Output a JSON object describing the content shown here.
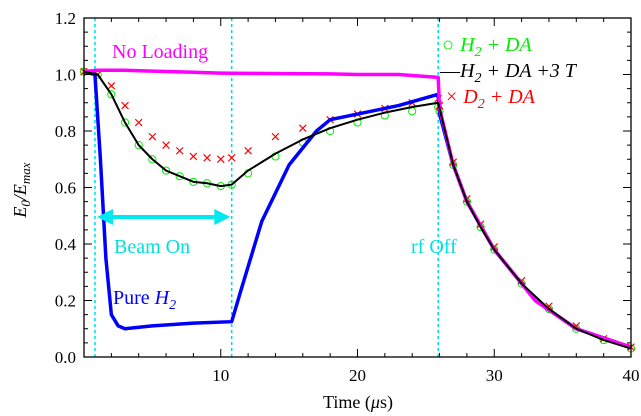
{
  "chart_data": {
    "type": "line",
    "xlabel": "Time (μs)",
    "ylabel": "E0/Emax",
    "xlim": [
      0,
      40
    ],
    "ylim": [
      0,
      1.2
    ],
    "xticks": [
      10,
      20,
      30,
      40
    ],
    "yticks": [
      0.0,
      0.2,
      0.4,
      0.6,
      0.8,
      1.0,
      1.2
    ],
    "ytick_labels": [
      "0.0",
      "0.2",
      "0.4",
      "0.6",
      "0.8",
      "1.0",
      "1.2"
    ],
    "grid": false,
    "legend_position": "top-right",
    "vlines": [
      0.8,
      10.8,
      25.9
    ],
    "series": [
      {
        "id": "no-loading",
        "color": "#ff00ff",
        "marker": "line",
        "x": [
          0,
          1,
          3,
          5,
          8,
          10,
          12,
          15,
          18,
          20,
          23,
          25.9,
          26,
          27,
          28,
          30,
          33,
          36,
          40
        ],
        "y": [
          1.01,
          1.015,
          1.015,
          1.012,
          1.008,
          1.005,
          1.004,
          1.003,
          1.002,
          1.0,
          1.0,
          0.99,
          0.88,
          0.68,
          0.55,
          0.38,
          0.2,
          0.1,
          0.035
        ]
      },
      {
        "id": "pure-h2",
        "color": "#0000ff",
        "marker": "line",
        "x": [
          0,
          0.8,
          1.2,
          1.6,
          2.0,
          2.5,
          3,
          5,
          8,
          10.8,
          11.5,
          13,
          15,
          17,
          18,
          20,
          23,
          25.9,
          26,
          27,
          28,
          30,
          33,
          36,
          40
        ],
        "y": [
          1.01,
          1.0,
          0.7,
          0.35,
          0.15,
          0.11,
          0.1,
          0.11,
          0.12,
          0.125,
          0.24,
          0.48,
          0.68,
          0.8,
          0.84,
          0.86,
          0.89,
          0.93,
          0.86,
          0.68,
          0.55,
          0.38,
          0.2,
          0.1,
          0.035
        ]
      },
      {
        "id": "h2-da",
        "color": "#00ee00",
        "marker": "circle",
        "x": [
          0,
          1,
          2,
          3,
          4,
          5,
          6,
          7,
          8,
          9,
          10,
          10.8,
          12,
          14,
          16,
          18,
          20,
          22,
          24,
          25.9,
          26,
          27,
          28,
          29,
          30,
          32,
          34,
          36,
          38,
          40
        ],
        "y": [
          1.01,
          1.0,
          0.93,
          0.83,
          0.75,
          0.7,
          0.66,
          0.64,
          0.62,
          0.615,
          0.605,
          0.61,
          0.65,
          0.71,
          0.76,
          0.8,
          0.83,
          0.855,
          0.87,
          0.885,
          0.87,
          0.68,
          0.55,
          0.46,
          0.38,
          0.26,
          0.17,
          0.1,
          0.06,
          0.03
        ]
      },
      {
        "id": "h2-da-3t",
        "color": "#000000",
        "marker": "line",
        "x": [
          0,
          1,
          2,
          3,
          4,
          5,
          6,
          7,
          8,
          9,
          10,
          10.8,
          12,
          14,
          16,
          18,
          20,
          22,
          24,
          25.9,
          26,
          27,
          28,
          29,
          30,
          32,
          34,
          36,
          38,
          40
        ],
        "y": [
          1.01,
          1.0,
          0.93,
          0.83,
          0.75,
          0.7,
          0.66,
          0.64,
          0.62,
          0.615,
          0.605,
          0.61,
          0.66,
          0.72,
          0.77,
          0.81,
          0.84,
          0.865,
          0.885,
          0.9,
          0.88,
          0.68,
          0.55,
          0.46,
          0.38,
          0.26,
          0.17,
          0.1,
          0.06,
          0.03
        ]
      },
      {
        "id": "d2-da",
        "color": "#ff0000",
        "marker": "x",
        "x": [
          0,
          1,
          2,
          3,
          4,
          5,
          6,
          7,
          8,
          9,
          10,
          10.8,
          12,
          14,
          16,
          18,
          20,
          22,
          24,
          25.9,
          26,
          27,
          28,
          29,
          30,
          32,
          34,
          36,
          38,
          40
        ],
        "y": [
          1.01,
          1.0,
          0.96,
          0.89,
          0.83,
          0.78,
          0.75,
          0.73,
          0.71,
          0.705,
          0.7,
          0.705,
          0.73,
          0.78,
          0.81,
          0.84,
          0.86,
          0.88,
          0.9,
          0.915,
          0.89,
          0.69,
          0.56,
          0.47,
          0.39,
          0.27,
          0.18,
          0.11,
          0.065,
          0.035
        ]
      }
    ],
    "annotations": {
      "no_loading": "No Loading",
      "beam_on": "Beam On",
      "rf_off": "rf Off",
      "pure_prefix": "Pure ",
      "h2_letter": "H",
      "h2_sub": "2"
    },
    "legend": [
      {
        "symbol": "○",
        "color": "#00ee00",
        "letter": "H",
        "sub": "2",
        "rest": " + DA"
      },
      {
        "symbol": "—",
        "color": "#000000",
        "letter": "H",
        "sub": "2",
        "rest": " + DA +3 T"
      },
      {
        "symbol": "×",
        "color": "#ff0000",
        "letter": "D",
        "sub": "2",
        "rest": " + DA"
      }
    ],
    "xlabel_parts": {
      "prefix": "Time (",
      "mu": "μ",
      "unit": "s)"
    },
    "ylabel_parts": {
      "e": "E",
      "e_sub": "0",
      "slash": "/",
      "e2": "E",
      "e2_sub": "max"
    }
  }
}
